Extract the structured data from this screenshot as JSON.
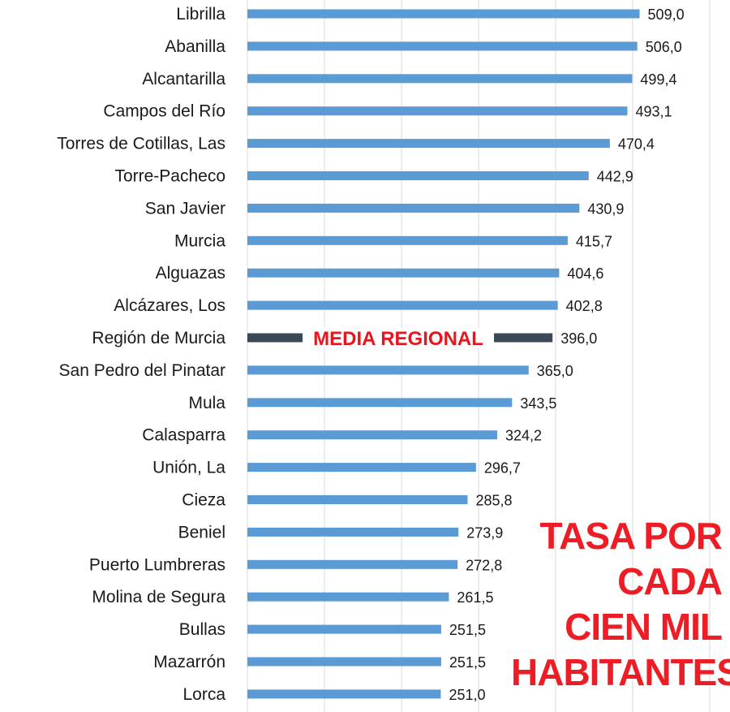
{
  "chart_data": {
    "type": "bar",
    "orientation": "horizontal",
    "categories": [
      "Librilla",
      "Abanilla",
      "Alcantarilla",
      "Campos del Río",
      "Torres de Cotillas, Las",
      "Torre-Pacheco",
      "San Javier",
      "Murcia",
      "Alguazas",
      "Alcázares, Los",
      "Región de Murcia",
      "San Pedro del Pinatar",
      "Mula",
      "Calasparra",
      "Unión, La",
      "Cieza",
      "Beniel",
      "Puerto Lumbreras",
      "Molina de Segura",
      "Bullas",
      "Mazarrón",
      "Lorca"
    ],
    "values": [
      509.0,
      506.0,
      499.4,
      493.1,
      470.4,
      442.9,
      430.9,
      415.7,
      404.6,
      402.8,
      396.0,
      365.0,
      343.5,
      324.2,
      296.7,
      285.8,
      273.9,
      272.8,
      261.5,
      251.5,
      251.5,
      251.0
    ],
    "value_labels": [
      "509,0",
      "506,0",
      "499,4",
      "493,1",
      "470,4",
      "442,9",
      "430,9",
      "415,7",
      "404,6",
      "402,8",
      "396,0",
      "365,0",
      "343,5",
      "324,2",
      "296,7",
      "285,8",
      "273,9",
      "272,8",
      "261,5",
      "251,5",
      "251,5",
      "251,0"
    ],
    "highlight_category": "Región de Murcia",
    "xlim": [
      0,
      600
    ],
    "grid": true,
    "colors": {
      "bar": "#5b9bd5",
      "highlight_bar": "#3b4856",
      "annotation": "#ee1c25"
    },
    "annotations": {
      "media": "MEDIA REGIONAL",
      "rate_lines": [
        "TASA POR",
        "CADA",
        "CIEN MIL",
        "HABITANTES"
      ]
    }
  }
}
